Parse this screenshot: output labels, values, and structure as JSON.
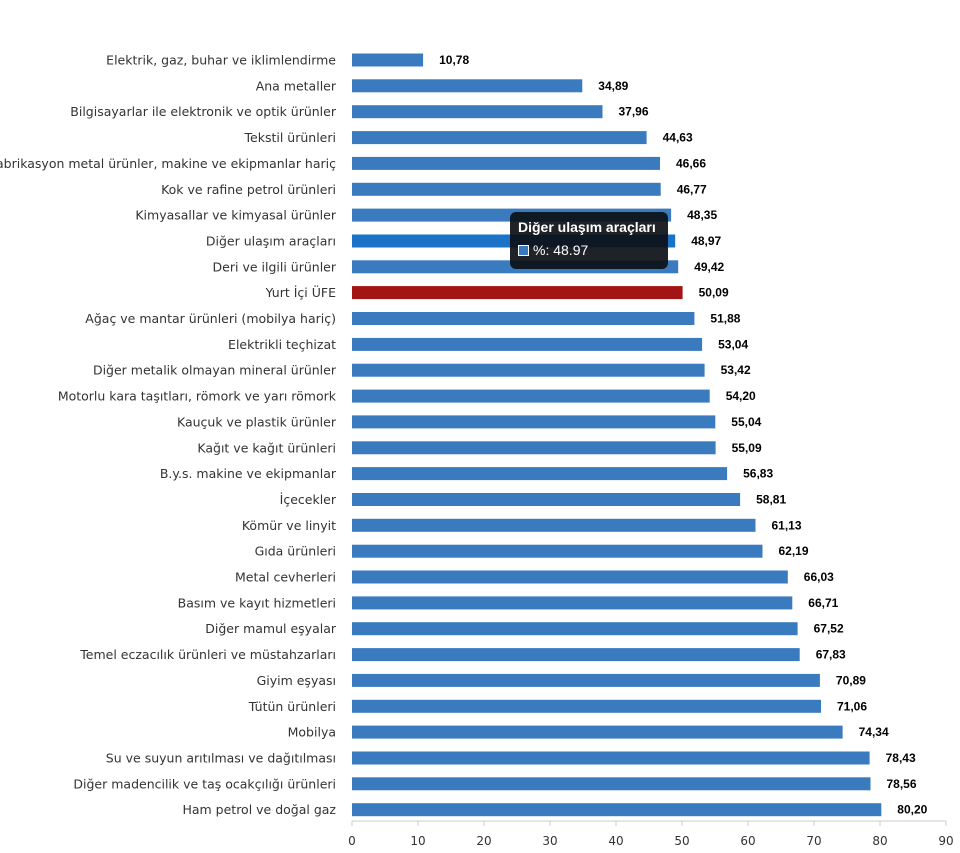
{
  "chart_data": {
    "type": "bar",
    "orientation": "horizontal",
    "categories": [
      "Elektrik, gaz, buhar ve iklimlendirme",
      "Ana metaller",
      "Bilgisayarlar ile elektronik ve optik ürünler",
      "Tekstil ürünleri",
      "Fabrikasyon metal ürünler, makine ve ekipmanlar hariç",
      "Kok ve rafine petrol ürünleri",
      "Kimyasallar ve kimyasal ürünler",
      "Diğer ulaşım araçları",
      "Deri ve ilgili ürünler",
      "Yurt İçi ÜFE",
      "Ağaç ve mantar ürünleri (mobilya hariç)",
      "Elektrikli teçhizat",
      "Diğer metalik olmayan mineral ürünler",
      "Motorlu kara taşıtları, römork ve yarı römork",
      "Kauçuk ve plastik ürünler",
      "Kağıt ve kağıt ürünleri",
      "B.y.s. makine ve ekipmanlar",
      "İçecekler",
      "Kömür ve linyit",
      "Gıda ürünleri",
      "Metal cevherleri",
      "Basım ve kayıt hizmetleri",
      "Diğer mamul eşyalar",
      "Temel eczacılık ürünleri ve müstahzarları",
      "Giyim eşyası",
      "Tütün ürünleri",
      "Mobilya",
      "Su ve suyun arıtılması ve dağıtılması",
      "Diğer madencilik ve taş ocakçılığı ürünleri",
      "Ham petrol ve doğal gaz"
    ],
    "values": [
      10.78,
      34.89,
      37.96,
      44.63,
      46.66,
      46.77,
      48.35,
      48.97,
      49.42,
      50.09,
      51.88,
      53.04,
      53.42,
      54.2,
      55.04,
      55.09,
      56.83,
      58.81,
      61.13,
      62.19,
      66.03,
      66.71,
      67.52,
      67.83,
      70.89,
      71.06,
      74.34,
      78.43,
      78.56,
      80.2
    ],
    "value_labels": [
      "10,78",
      "34,89",
      "37,96",
      "44,63",
      "46,66",
      "46,77",
      "48,35",
      "48,97",
      "49,42",
      "50,09",
      "51,88",
      "53,04",
      "53,42",
      "54,20",
      "55,04",
      "55,09",
      "56,83",
      "58,81",
      "61,13",
      "62,19",
      "66,03",
      "66,71",
      "67,52",
      "67,83",
      "70,89",
      "71,06",
      "74,34",
      "78,43",
      "78,56",
      "80,20"
    ],
    "xlim": [
      0,
      90
    ],
    "x_ticks": [
      0,
      10,
      20,
      30,
      40,
      50,
      60,
      70,
      80,
      90
    ],
    "title": "",
    "xlabel": "",
    "ylabel": "",
    "grid": false,
    "colors": {
      "default": "#3a7bbf",
      "highlight_total": "#a31515",
      "hovered": "#1a73c7"
    },
    "highlight_index": 9,
    "hovered_index": 7
  },
  "tooltip": {
    "title": "Diğer ulaşım araçları",
    "text": "%: 48.97"
  }
}
